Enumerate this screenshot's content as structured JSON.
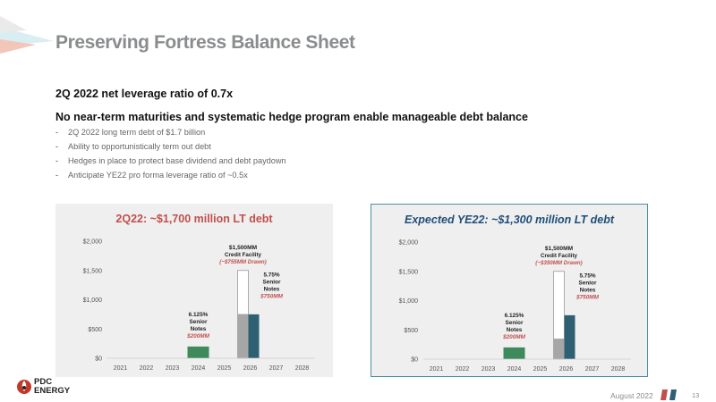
{
  "slide": {
    "title": "Preserving Fortress Balance Sheet",
    "headline1": "2Q 2022 net leverage ratio of 0.7x",
    "headline2": "No near-term maturities and systematic hedge program enable manageable debt balance",
    "bullets": [
      "2Q 2022 long term debt of $1.7 billion",
      "Ability to opportunistically term out debt",
      "Hedges in place to protect base dividend and debt paydown",
      "Anticipate YE22 pro forma leverage ratio of ~0.5x"
    ],
    "footer_date": "August 2022",
    "page_number": "13",
    "logo": {
      "line1": "PDC",
      "line2": "ENERGY"
    }
  },
  "colors": {
    "title_gray": "#8a8c8e",
    "credit_drawn": "#a6a6a6",
    "senior_2026": "#2f5f73",
    "senior_2024": "#3f8a5a",
    "accent_red": "#c0504d",
    "accent_blue": "#1f4e79"
  },
  "chart_data": [
    {
      "type": "bar",
      "title": "2Q22: ~$1,700 million LT debt",
      "categories": [
        "2021",
        "2022",
        "2023",
        "2024",
        "2025",
        "2026",
        "2027",
        "2028"
      ],
      "yticks": [
        "$0",
        "$500",
        "$1,000",
        "$1,500",
        "$2,000"
      ],
      "ylim": [
        0,
        2000
      ],
      "series": [
        {
          "key": "senior_2024",
          "category": "2024",
          "value": 200
        },
        {
          "key": "credit_facility_capacity",
          "category": "2026",
          "value": 1500
        },
        {
          "key": "credit_facility_drawn",
          "category": "2026",
          "value": 755
        },
        {
          "key": "senior_2026",
          "category": "2026",
          "value": 750
        }
      ],
      "annotations": {
        "cf": [
          "$1,500MM",
          "Credit Facility",
          "(~$755MM Drawn)"
        ],
        "sn26": [
          "5.75%",
          "Senior",
          "Notes",
          "$750MM"
        ],
        "sn24": [
          "6.125%",
          "Senior",
          "Notes",
          "$200MM"
        ]
      }
    },
    {
      "type": "bar",
      "title": "Expected YE22: ~$1,300 million LT debt",
      "categories": [
        "2021",
        "2022",
        "2023",
        "2024",
        "2025",
        "2026",
        "2027",
        "2028"
      ],
      "yticks": [
        "$0",
        "$500",
        "$1,000",
        "$1,500",
        "$2,000"
      ],
      "ylim": [
        0,
        2000
      ],
      "series": [
        {
          "key": "senior_2024",
          "category": "2024",
          "value": 200
        },
        {
          "key": "credit_facility_capacity",
          "category": "2026",
          "value": 1500
        },
        {
          "key": "credit_facility_drawn",
          "category": "2026",
          "value": 350
        },
        {
          "key": "senior_2026",
          "category": "2026",
          "value": 750
        }
      ],
      "annotations": {
        "cf": [
          "$1,500MM",
          "Credit Facility",
          "(~$350MM Drawn)"
        ],
        "sn26": [
          "5.75%",
          "Senior",
          "Notes",
          "$750MM"
        ],
        "sn24": [
          "6.125%",
          "Senior",
          "Notes",
          "$200MM"
        ]
      }
    }
  ]
}
